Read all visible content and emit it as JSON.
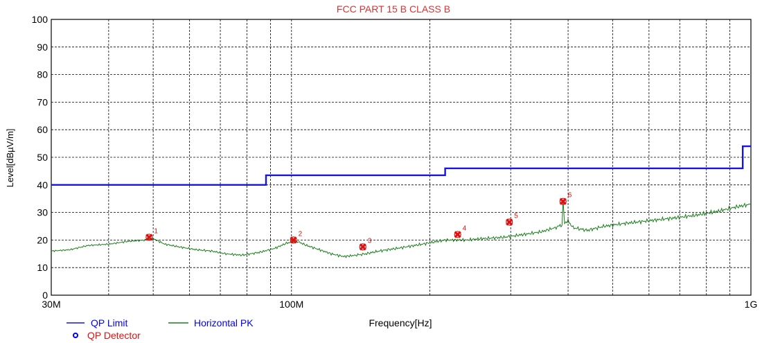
{
  "chart_data": {
    "type": "line",
    "title": "FCC PART 15 B CLASS B",
    "xlabel": "Frequency[Hz]",
    "ylabel": "Level[dBµV/m]",
    "x_scale": "log",
    "xlim": [
      30000000,
      1000000000
    ],
    "ylim": [
      0,
      100
    ],
    "x_ticks": [
      {
        "value": 30000000,
        "label": "30M"
      },
      {
        "value": 100000000,
        "label": "100M"
      },
      {
        "value": 1000000000,
        "label": "1G"
      }
    ],
    "y_ticks": [
      0,
      10,
      20,
      30,
      40,
      50,
      60,
      70,
      80,
      90,
      100
    ],
    "grid": true,
    "legend_placement": "bottom-left",
    "colors": {
      "qp_limit": "#1414e6",
      "horizontal_pk": "#1a7f1a",
      "qp_detector": "#e01010",
      "marker_label": "#e01010",
      "title": "#e03030"
    },
    "series": [
      {
        "name": "QP Limit",
        "kind": "step",
        "points": [
          [
            30000000,
            40
          ],
          [
            88000000,
            40
          ],
          [
            88000000,
            43.5
          ],
          [
            216000000,
            43.5
          ],
          [
            216000000,
            46
          ],
          [
            960000000,
            46
          ],
          [
            960000000,
            54
          ],
          [
            1000000000,
            54
          ]
        ]
      },
      {
        "name": "Horizontal PK",
        "kind": "trace",
        "points": [
          [
            30000000,
            16
          ],
          [
            33000000,
            16.5
          ],
          [
            36000000,
            18
          ],
          [
            40000000,
            18.5
          ],
          [
            44000000,
            19.5
          ],
          [
            48000000,
            20
          ],
          [
            50000000,
            20.5
          ],
          [
            53000000,
            18.5
          ],
          [
            57000000,
            17.5
          ],
          [
            62000000,
            16.5
          ],
          [
            67000000,
            16
          ],
          [
            72000000,
            15
          ],
          [
            78000000,
            14.5
          ],
          [
            85000000,
            15.5
          ],
          [
            92000000,
            17
          ],
          [
            98000000,
            19
          ],
          [
            103000000,
            19.5
          ],
          [
            108000000,
            18
          ],
          [
            115000000,
            16.5
          ],
          [
            122000000,
            15
          ],
          [
            130000000,
            14
          ],
          [
            138000000,
            14.5
          ],
          [
            145000000,
            15
          ],
          [
            155000000,
            16
          ],
          [
            170000000,
            17
          ],
          [
            185000000,
            18
          ],
          [
            200000000,
            19
          ],
          [
            216000000,
            20
          ],
          [
            240000000,
            20
          ],
          [
            260000000,
            20.5
          ],
          [
            290000000,
            21
          ],
          [
            320000000,
            22
          ],
          [
            350000000,
            23
          ],
          [
            375000000,
            24.5
          ],
          [
            388000000,
            25.5
          ],
          [
            390000000,
            34
          ],
          [
            393000000,
            26
          ],
          [
            400000000,
            27
          ],
          [
            410000000,
            24.5
          ],
          [
            440000000,
            23.5
          ],
          [
            480000000,
            25
          ],
          [
            530000000,
            26
          ],
          [
            600000000,
            27
          ],
          [
            680000000,
            28
          ],
          [
            760000000,
            29
          ],
          [
            850000000,
            30.5
          ],
          [
            930000000,
            32
          ],
          [
            1000000000,
            33
          ]
        ]
      }
    ],
    "detector": {
      "name": "QP Detector",
      "points": [
        {
          "label": "1",
          "x": 49000000,
          "y": 21
        },
        {
          "label": "2",
          "x": 101000000,
          "y": 20
        },
        {
          "label": "3",
          "x": 143000000,
          "y": 17.5
        },
        {
          "label": "4",
          "x": 230000000,
          "y": 22
        },
        {
          "label": "5",
          "x": 298000000,
          "y": 26.5
        },
        {
          "label": "6",
          "x": 390000000,
          "y": 34
        }
      ]
    }
  }
}
